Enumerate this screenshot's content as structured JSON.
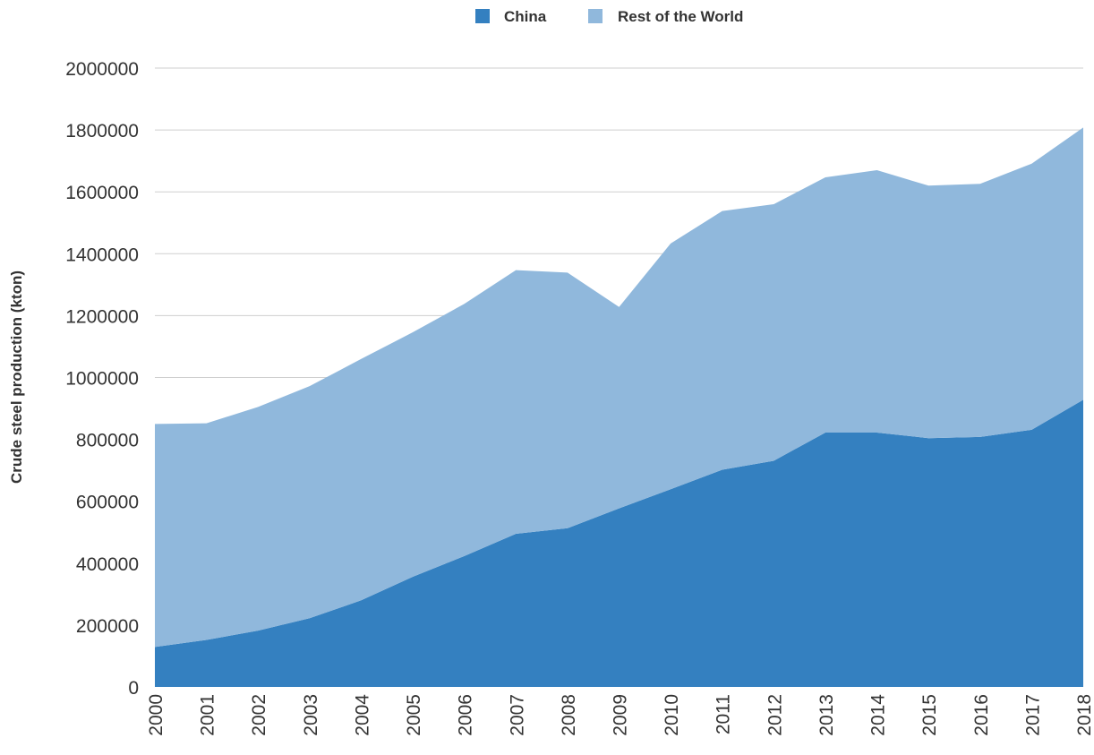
{
  "chart_data": {
    "type": "area",
    "stacked": true,
    "title": "",
    "xlabel": "",
    "ylabel": "Crude steel production (kton)",
    "ylim": [
      0,
      2000000
    ],
    "yticks": [
      0,
      200000,
      400000,
      600000,
      800000,
      1000000,
      1200000,
      1400000,
      1600000,
      1800000,
      2000000
    ],
    "grid": true,
    "legend_position": "top-center",
    "categories": [
      "2000",
      "2001",
      "2002",
      "2003",
      "2004",
      "2005",
      "2006",
      "2007",
      "2008",
      "2009",
      "2010",
      "2011",
      "2012",
      "2013",
      "2014",
      "2015",
      "2016",
      "2017",
      "2018"
    ],
    "series": [
      {
        "name": "China",
        "color": "#3480c0",
        "values": [
          129000,
          152000,
          182000,
          222000,
          280000,
          356000,
          423000,
          495000,
          513000,
          577000,
          639000,
          702000,
          731000,
          822000,
          822000,
          804000,
          808000,
          831000,
          928000
        ]
      },
      {
        "name": "Rest of the World",
        "color": "#90b8dc",
        "values": [
          721000,
          700000,
          723000,
          750000,
          780000,
          790000,
          815000,
          852000,
          826000,
          651000,
          794000,
          836000,
          829000,
          825000,
          848000,
          816000,
          818000,
          860000,
          880000
        ]
      }
    ]
  }
}
